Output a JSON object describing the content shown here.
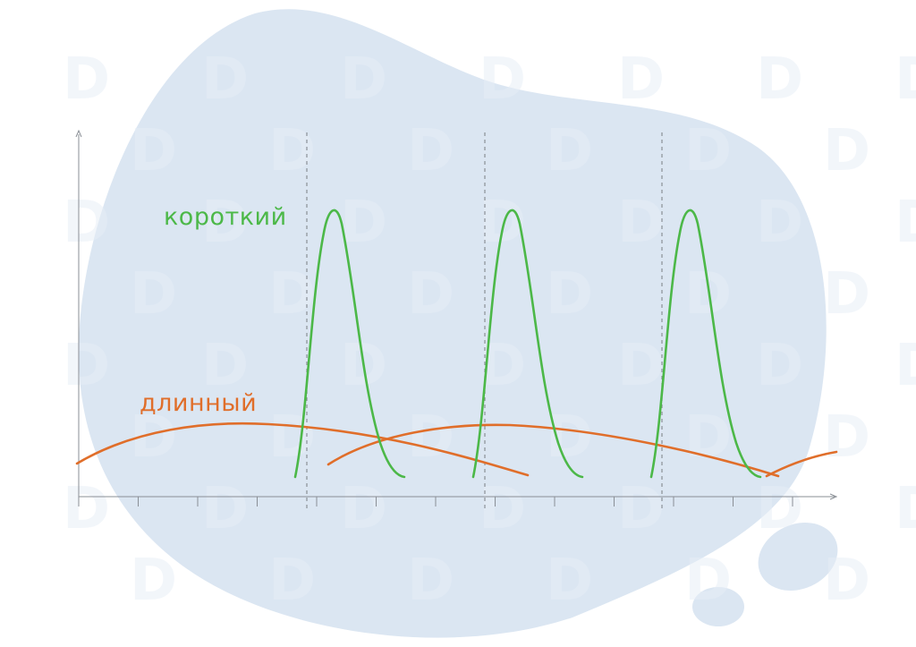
{
  "labels": {
    "short": "короткий",
    "long": "длинный"
  },
  "colors": {
    "background_blob": "#dbe6f2",
    "axis": "#8a8f96",
    "dashed": "#8a8f96",
    "short_curve": "#4cb848",
    "long_curve": "#e06e2a"
  },
  "watermark_text": "D"
}
